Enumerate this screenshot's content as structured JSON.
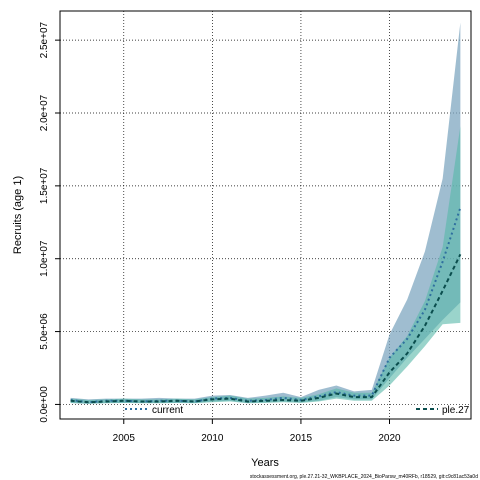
{
  "chart_data": {
    "type": "area",
    "title": "",
    "xlabel": "Years",
    "ylabel": "Recruits (age 1)",
    "xlim": [
      2001.4,
      2024.6
    ],
    "ylim": [
      -1000000,
      27000000
    ],
    "x_ticks": [
      2005,
      2010,
      2015,
      2020
    ],
    "x_tick_labels": [
      "2005",
      "2010",
      "2015",
      "2020"
    ],
    "y_ticks": [
      0,
      5000000,
      10000000,
      15000000,
      20000000,
      25000000
    ],
    "y_tick_labels": [
      "0.0e+00",
      "5.0e+06",
      "1.0e+07",
      "1.5e+07",
      "2.0e+07",
      "2.5e+07"
    ],
    "grid": true,
    "legend_position": "bottom",
    "x": [
      2002,
      2003,
      2004,
      2005,
      2006,
      2007,
      2008,
      2009,
      2010,
      2011,
      2012,
      2013,
      2014,
      2015,
      2016,
      2017,
      2018,
      2019,
      2020,
      2021,
      2022,
      2023,
      2024
    ],
    "series": [
      {
        "name": "current",
        "color": "#2f6f9f",
        "band_color": "#7fa7c0",
        "line_style": "dotted",
        "values": [
          300000,
          150000,
          250000,
          250000,
          200000,
          250000,
          250000,
          200000,
          400000,
          450000,
          250000,
          300000,
          450000,
          300000,
          550000,
          850000,
          600000,
          600000,
          3200000,
          4500000,
          6500000,
          9800000,
          13500000
        ],
        "lower": [
          100000,
          50000,
          100000,
          100000,
          100000,
          100000,
          100000,
          100000,
          200000,
          250000,
          100000,
          150000,
          200000,
          150000,
          250000,
          500000,
          350000,
          350000,
          1800000,
          3200000,
          4500000,
          5800000,
          7000000
        ],
        "upper": [
          450000,
          350000,
          400000,
          400000,
          400000,
          450000,
          400000,
          400000,
          600000,
          650000,
          450000,
          600000,
          800000,
          500000,
          1000000,
          1300000,
          900000,
          1000000,
          4800000,
          7200000,
          10500000,
          15500000,
          26200000
        ]
      },
      {
        "name": "ple.27",
        "color": "#0a4d4d",
        "band_color": "#57b8a8",
        "line_style": "dashed",
        "values": [
          250000,
          150000,
          200000,
          250000,
          200000,
          200000,
          250000,
          200000,
          350000,
          400000,
          200000,
          250000,
          300000,
          250000,
          450000,
          750000,
          500000,
          500000,
          2200000,
          3500000,
          5400000,
          7800000,
          10300000
        ],
        "lower": [
          100000,
          50000,
          80000,
          100000,
          80000,
          80000,
          100000,
          80000,
          150000,
          200000,
          80000,
          100000,
          150000,
          100000,
          200000,
          400000,
          250000,
          250000,
          1300000,
          2600000,
          4000000,
          5500000,
          5600000
        ],
        "upper": [
          400000,
          300000,
          350000,
          400000,
          350000,
          350000,
          400000,
          350000,
          500000,
          600000,
          400000,
          450000,
          550000,
          450000,
          700000,
          1100000,
          800000,
          800000,
          3200000,
          4700000,
          7100000,
          10800000,
          19100000
        ]
      }
    ],
    "footer": "stockassessment.org, ple.27.21-32_WKBPLACE_2024_BioParsw_m40RFb, r18529, git:c9c81ac53a0d"
  }
}
